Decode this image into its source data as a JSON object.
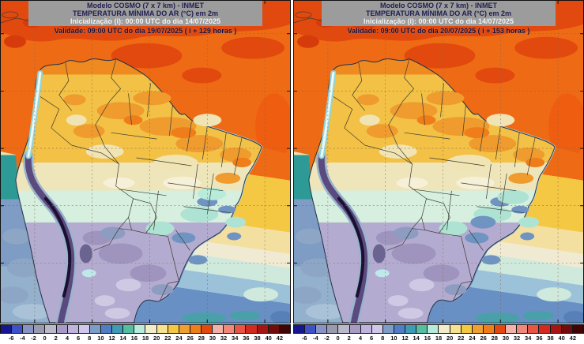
{
  "panels": [
    {
      "name": "left-forecast",
      "title": {
        "line1": "Modelo COSMO (7 x 7 km) - INMET",
        "line2": "TEMPERATURA MÍNIMA DO AR (°C) em 2m",
        "line3": "Inicialização (i): 00:00 UTC do dia 14/07/2025",
        "line4": "Validade: 09:00 UTC do dia 19/07/2025 ( i + 129 horas )"
      }
    },
    {
      "name": "right-forecast",
      "title": {
        "line1": "Modelo COSMO (7 x 7 km) - INMET",
        "line2": "TEMPERATURA MÍNIMA DO AR (°C) em 2m",
        "line3": "Inicialização (i): 00:00 UTC do dia 14/07/2025",
        "line4": "Validade: 09:00 UTC do dia 20/07/2025 ( i + 153 horas )"
      }
    }
  ],
  "colorbar": {
    "unit": "°C",
    "tick_labels": [
      "-6",
      "-4",
      "-2",
      "0",
      "2",
      "4",
      "6",
      "8",
      "10",
      "12",
      "14",
      "16",
      "18",
      "20",
      "22",
      "24",
      "26",
      "28",
      "30",
      "32",
      "34",
      "36",
      "38",
      "40",
      "42"
    ],
    "cell_colors": [
      "#16168e",
      "#3e52c8",
      "#8892c4",
      "#9a9aae",
      "#b9b9c9",
      "#a79bc6",
      "#c0b4de",
      "#d0c8ea",
      "#7e9cc8",
      "#4f7ec6",
      "#3f9ab4",
      "#55bda0",
      "#b6ecd9",
      "#f2ecc8",
      "#f5e391",
      "#f5c843",
      "#f0a030",
      "#ee7d1a",
      "#e2490e",
      "#f2b2aa",
      "#ee8878",
      "#e85545",
      "#d42a1e",
      "#a61512",
      "#720b0b",
      "#400404"
    ]
  }
}
